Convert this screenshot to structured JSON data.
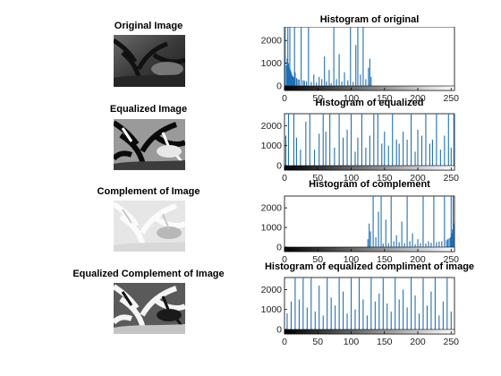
{
  "left_images": [
    {
      "title": "Original Image"
    },
    {
      "title": "Equalized Image"
    },
    {
      "title": "Complement of Image"
    },
    {
      "title": "Equalized Complement of Image"
    }
  ],
  "colors": {
    "bar": "#1f6fb5",
    "axis": "#000000",
    "colorbar_dark": "#000000",
    "colorbar_light": "#ffffff"
  },
  "chart_data": [
    {
      "type": "bar",
      "title": "Histogram of original",
      "xlim": [
        0,
        255
      ],
      "ylim": [
        0,
        2600
      ],
      "xticks": [
        0,
        50,
        100,
        150,
        200,
        250
      ],
      "yticks": [
        0,
        1000,
        2000
      ],
      "x": [
        1,
        3,
        4,
        5,
        6,
        7,
        8,
        9,
        10,
        11,
        12,
        13,
        14,
        15,
        16,
        18,
        20,
        22,
        25,
        28,
        30,
        33,
        36,
        40,
        44,
        48,
        52,
        56,
        60,
        63,
        67,
        70,
        74,
        78,
        82,
        86,
        90,
        95,
        99,
        103,
        107,
        110,
        114,
        118,
        122,
        126,
        128,
        130
      ],
      "values": [
        2600,
        900,
        1200,
        2600,
        1000,
        800,
        2600,
        700,
        600,
        500,
        450,
        400,
        380,
        2600,
        600,
        350,
        300,
        280,
        2600,
        250,
        220,
        200,
        2600,
        180,
        500,
        150,
        400,
        300,
        1300,
        200,
        700,
        120,
        2600,
        300,
        1400,
        200,
        600,
        250,
        2600,
        180,
        1800,
        2600,
        500,
        2600,
        300,
        800,
        1200,
        400
      ]
    },
    {
      "type": "bar",
      "title": "Histogram of equalized",
      "xlim": [
        0,
        255
      ],
      "ylim": [
        0,
        2600
      ],
      "xticks": [
        0,
        50,
        100,
        150,
        200,
        250
      ],
      "yticks": [
        0,
        1000,
        2000
      ],
      "x": [
        2,
        6,
        14,
        18,
        24,
        32,
        38,
        45,
        52,
        58,
        62,
        68,
        75,
        82,
        88,
        94,
        100,
        106,
        110,
        116,
        122,
        128,
        134,
        140,
        146,
        150,
        156,
        162,
        168,
        172,
        178,
        184,
        190,
        196,
        200,
        206,
        212,
        218,
        222,
        228,
        234,
        240,
        246,
        250,
        254
      ],
      "values": [
        1500,
        2600,
        2600,
        1400,
        800,
        2200,
        2600,
        800,
        1600,
        2600,
        1700,
        2600,
        900,
        2600,
        1400,
        1800,
        2600,
        700,
        1400,
        2600,
        900,
        1500,
        2600,
        2600,
        1100,
        1700,
        1000,
        2600,
        1300,
        1100,
        1700,
        1300,
        2600,
        700,
        1800,
        1500,
        2600,
        1100,
        1300,
        2600,
        800,
        1500,
        2600,
        900,
        2600
      ]
    },
    {
      "type": "bar",
      "title": "Histogram of complement",
      "xlim": [
        0,
        255
      ],
      "ylim": [
        0,
        2600
      ],
      "xticks": [
        0,
        50,
        100,
        150,
        200,
        250
      ],
      "yticks": [
        0,
        1000,
        2000
      ],
      "x": [
        125,
        127,
        129,
        133,
        137,
        141,
        145,
        148,
        152,
        156,
        160,
        164,
        168,
        172,
        176,
        180,
        184,
        188,
        192,
        196,
        200,
        204,
        208,
        212,
        216,
        220,
        224,
        228,
        232,
        236,
        240,
        243,
        245,
        247,
        249,
        250,
        251,
        252,
        253,
        254
      ],
      "values": [
        400,
        1200,
        800,
        2600,
        500,
        1800,
        2600,
        180,
        1400,
        200,
        2600,
        300,
        600,
        250,
        1300,
        200,
        2600,
        300,
        700,
        150,
        400,
        200,
        2600,
        180,
        300,
        220,
        2600,
        250,
        280,
        300,
        2600,
        350,
        400,
        450,
        500,
        2600,
        700,
        900,
        2600,
        1200
      ]
    },
    {
      "type": "bar",
      "title": "Histogram of equalized compliment of image",
      "xlim": [
        0,
        255
      ],
      "ylim": [
        0,
        2600
      ],
      "xticks": [
        0,
        50,
        100,
        150,
        200,
        250
      ],
      "yticks": [
        0,
        1000,
        2000
      ],
      "x": [
        4,
        10,
        16,
        22,
        28,
        34,
        40,
        46,
        52,
        58,
        64,
        70,
        76,
        82,
        88,
        94,
        100,
        106,
        112,
        118,
        124,
        130,
        136,
        142,
        148,
        154,
        160,
        166,
        172,
        178,
        184,
        190,
        196,
        202,
        208,
        214,
        220,
        226,
        232,
        238,
        244,
        250
      ],
      "values": [
        800,
        1400,
        2600,
        1500,
        2600,
        1100,
        2600,
        900,
        2200,
        700,
        2600,
        1600,
        1200,
        2600,
        1900,
        800,
        2600,
        1000,
        2600,
        1500,
        700,
        2600,
        1400,
        1800,
        2600,
        1300,
        900,
        2600,
        1500,
        2000,
        1100,
        2600,
        1700,
        800,
        2600,
        1200,
        1900,
        2600,
        700,
        1400,
        2600,
        900
      ]
    }
  ]
}
